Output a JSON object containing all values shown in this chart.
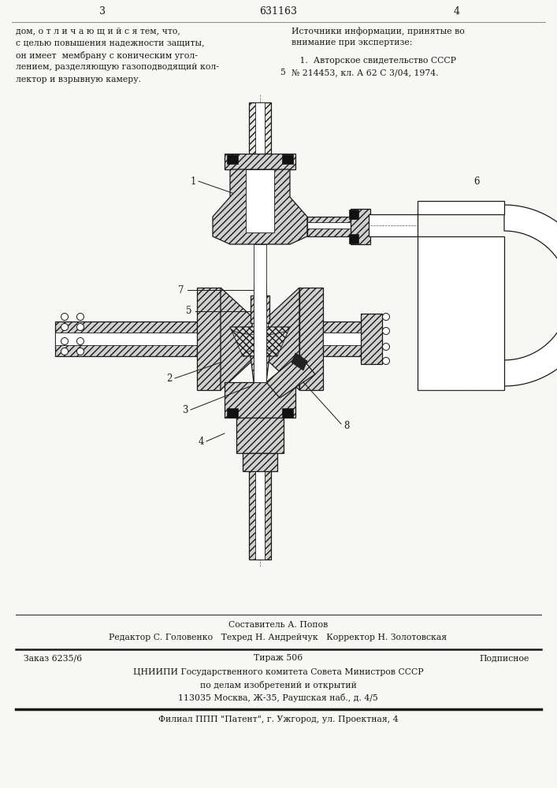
{
  "bg_color": "#f7f7f4",
  "page_width": 7.07,
  "page_height": 10.0,
  "patent_number": "631163",
  "page_left": "3",
  "page_right": "4",
  "top_left_text": [
    "дом, о т л и ч а ю щ и й с я тем, что,",
    "с целью повышения надежности защиты,",
    "он имеет  мембрану с коническим угол-",
    "лением, разделяющую газоподводящий кол-",
    "лектор и взрывную камеру."
  ],
  "top_right_line1": "Источники информации, принятые во",
  "top_right_line2": "внимание при экспертизе:",
  "top_right_line3": "   1.  Авторское свидетельство СССР",
  "top_right_line4": "№ 214453, кл. А 62 С 3/04, 1974.",
  "ref_num": "5",
  "bottom_staff_line1": "Составитель А. Попов",
  "bottom_staff_line2": "Редактор С. Головенко   Техред Н. Андрейчук   Корректор Н. Золотовская",
  "bottom_order": "Заказ 6235/6",
  "bottom_tirazh": "Тираж 506",
  "bottom_podp": "Подписное",
  "bottom_org1": "ЦНИИПИ Государственного комитета Совета Министров СССР",
  "bottom_org2": "по делам изобретений и открытий",
  "bottom_org3": "113035 Москва, Ж-35, Раушская наб., д. 4/5",
  "bottom_filial": "Филиал ППП \"Патент\", г. Ужгород, ул. Проектная, 4",
  "text_color": "#1a1a1a",
  "hatch_color": "#444444",
  "line_color": "#222222"
}
